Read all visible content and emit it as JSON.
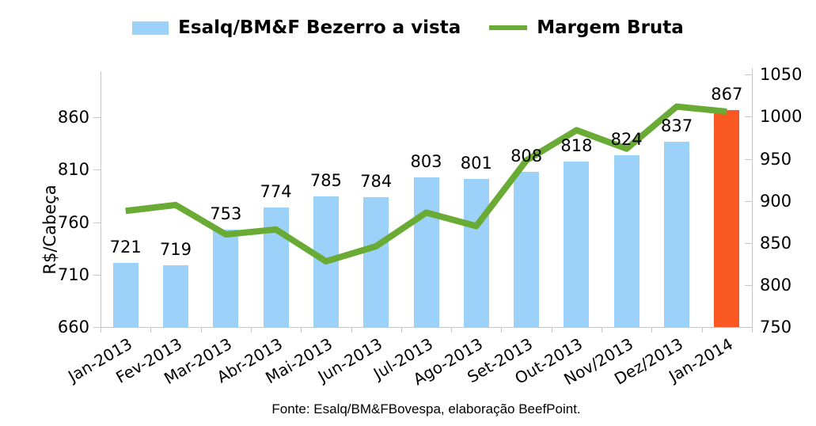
{
  "legend": {
    "bar_label": "Esalq/BM&F Bezerro a vista",
    "line_label": "Margem Bruta"
  },
  "y_axis_title": "R$/Cabeça",
  "footer_text": "Fonte: Esalq/BM&FBovespa, elaboração BeefPoint.",
  "colors": {
    "bar_blue": "#9CD2F9",
    "bar_highlight_orange": "#F95823",
    "line_green": "#6AAB35",
    "axis_gray": "#C6C6C6",
    "text_black": "#000000"
  },
  "chart_data": {
    "type": "bar",
    "subtype": "combo-bar-line-dual-axis",
    "title": "",
    "categories": [
      "Jan-2013",
      "Fev-2013",
      "Mar-2013",
      "Abr-2013",
      "Mai-2013",
      "Jun-2013",
      "Jul-2013",
      "Ago-2013",
      "Set-2013",
      "Out-2013",
      "Nov/2013",
      "Dez/2013",
      "Jan-2014"
    ],
    "series": [
      {
        "name": "Esalq/BM&F Bezerro a vista",
        "type": "bar",
        "axis": "left",
        "values": [
          721,
          719,
          753,
          774,
          785,
          784,
          803,
          801,
          808,
          818,
          824,
          837,
          867
        ],
        "highlight_index": 12
      },
      {
        "name": "Margem Bruta",
        "type": "line",
        "axis": "right",
        "values": [
          888,
          895,
          860,
          866,
          828,
          846,
          886,
          870,
          948,
          984,
          962,
          1012,
          1006
        ]
      }
    ],
    "left_axis": {
      "label": "R$/Cabeça",
      "ticks": [
        660,
        710,
        760,
        810,
        860
      ],
      "range": [
        660,
        904
      ]
    },
    "right_axis": {
      "label": "",
      "ticks": [
        750,
        800,
        850,
        900,
        950,
        1000,
        1050
      ],
      "range": [
        750,
        1054
      ]
    },
    "legend_position": "top",
    "grid": false,
    "data_labels": true
  }
}
